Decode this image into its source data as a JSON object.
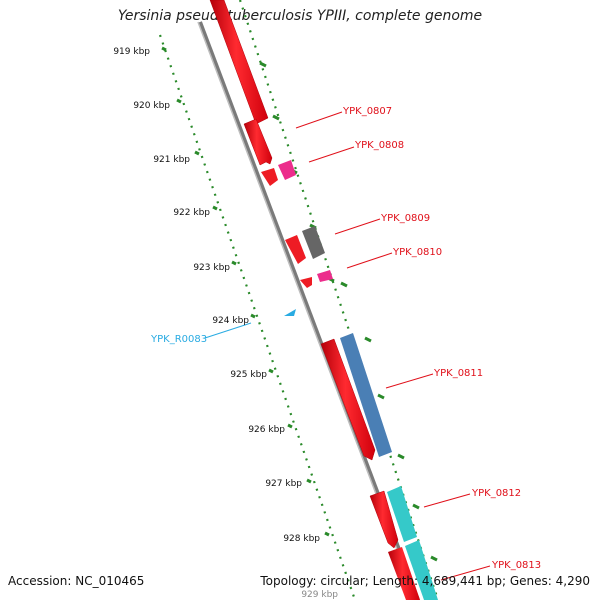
{
  "title": "Yersinia pseudotuberculosis YPIII, complete genome",
  "footer": {
    "accession": "Accession: NC_010465",
    "summary": "Topology: circular; Length: 4,689,441 bp; Genes: 4,290"
  },
  "kbp_ticks": [
    {
      "label": "919 kbp",
      "kbp": 919
    },
    {
      "label": "920 kbp",
      "kbp": 920
    },
    {
      "label": "921 kbp",
      "kbp": 921
    },
    {
      "label": "922 kbp",
      "kbp": 922
    },
    {
      "label": "923 kbp",
      "kbp": 923
    },
    {
      "label": "924 kbp",
      "kbp": 924
    },
    {
      "label": "925 kbp",
      "kbp": 925
    },
    {
      "label": "926 kbp",
      "kbp": 926
    },
    {
      "label": "927 kbp",
      "kbp": 927
    },
    {
      "label": "928 kbp",
      "kbp": 928
    },
    {
      "label": "929 kbp",
      "kbp": 929
    }
  ],
  "genes": [
    {
      "label": "YPK_0807",
      "color": "#e8202a"
    },
    {
      "label": "YPK_0808",
      "color": "#e8202a"
    },
    {
      "label": "YPK_0809",
      "color": "#e8202a"
    },
    {
      "label": "YPK_0810",
      "color": "#e8202a"
    },
    {
      "label": "YPK_0811",
      "color": "#e8202a"
    },
    {
      "label": "YPK_0812",
      "color": "#e8202a"
    },
    {
      "label": "YPK_0813",
      "color": "#e8202a"
    }
  ],
  "rna_feature": {
    "label": "YPK_R0083",
    "color": "#29abe2"
  },
  "colors": {
    "cds": "#ee1c24",
    "magenta": "#ec2d8c",
    "gray_block": "#666666",
    "blue_block": "#4a7fb5",
    "cyan_block": "#35c9c9",
    "backbone": "#8c8c8c",
    "tick_green": "#2a8a2a",
    "label_red": "#e0101a",
    "label_blue": "#29abe2"
  }
}
